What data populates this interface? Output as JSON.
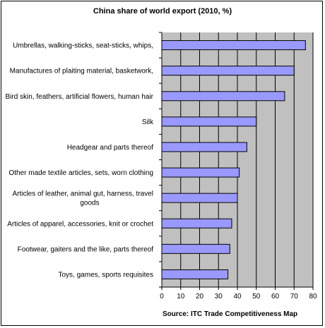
{
  "chart_data": {
    "type": "bar",
    "orientation": "horizontal",
    "title": "China share of world export (2010, %)",
    "source": "Source: ITC Trade Competitiveness Map",
    "categories": [
      [
        "Umbrellas, walking-sticks, seat-sticks, whips,"
      ],
      [
        "Manufactures of plaiting material, basketwork,"
      ],
      [
        "Bird skin, feathers, artificial flowers, human hair"
      ],
      [
        "Silk"
      ],
      [
        "Headgear and parts thereof"
      ],
      [
        "Other made textile articles, sets, worn clothing"
      ],
      [
        "Articles of leather, animal gut, harness, travel",
        "goods"
      ],
      [
        "Articles of apparel, accessories, knit or crochet"
      ],
      [
        "Footwear, gaiters and the like, parts thereof"
      ],
      [
        "Toys, games, sports requisites"
      ]
    ],
    "values": [
      76,
      70,
      65,
      50,
      45,
      41,
      40,
      37,
      36,
      35
    ],
    "xlim": [
      0,
      80
    ],
    "xticks": [
      0,
      10,
      20,
      30,
      40,
      50,
      60,
      70,
      80
    ],
    "grid": true,
    "colors": {
      "bar": "#9999ff",
      "plot_bg": "#c0c0c0",
      "bar_edge": "#000000"
    }
  }
}
